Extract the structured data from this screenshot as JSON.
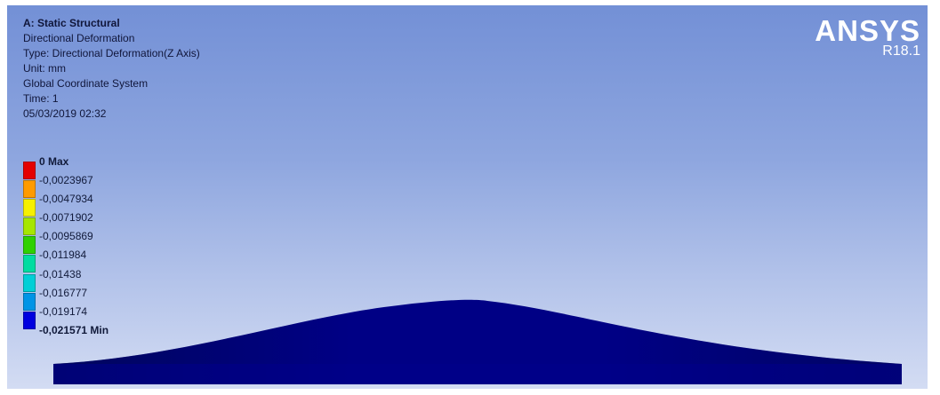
{
  "header": {
    "title": "A: Static Structural",
    "lines": [
      "Directional Deformation",
      "Type: Directional Deformation(Z Axis)",
      "Unit: mm",
      "Global Coordinate System",
      "Time: 1",
      "05/03/2019 02:32"
    ]
  },
  "brand": {
    "name": "ANSYS",
    "version": "R18.1"
  },
  "legend": {
    "labels": [
      "0 Max",
      "-0,0023967",
      "-0,0047934",
      "-0,0071902",
      "-0,0095869",
      "-0,011984",
      "-0,01438",
      "-0,016777",
      "-0,019174",
      "-0,021571 Min"
    ],
    "colors": [
      "#e40000",
      "#ff9b00",
      "#f6f000",
      "#a6e600",
      "#2fd100",
      "#00dca1",
      "#00cfd6",
      "#0094e6",
      "#0000df"
    ]
  },
  "colors": {
    "background_top": "#7390d6",
    "background_bottom": "#d3dcf3",
    "text": "#10163a"
  }
}
